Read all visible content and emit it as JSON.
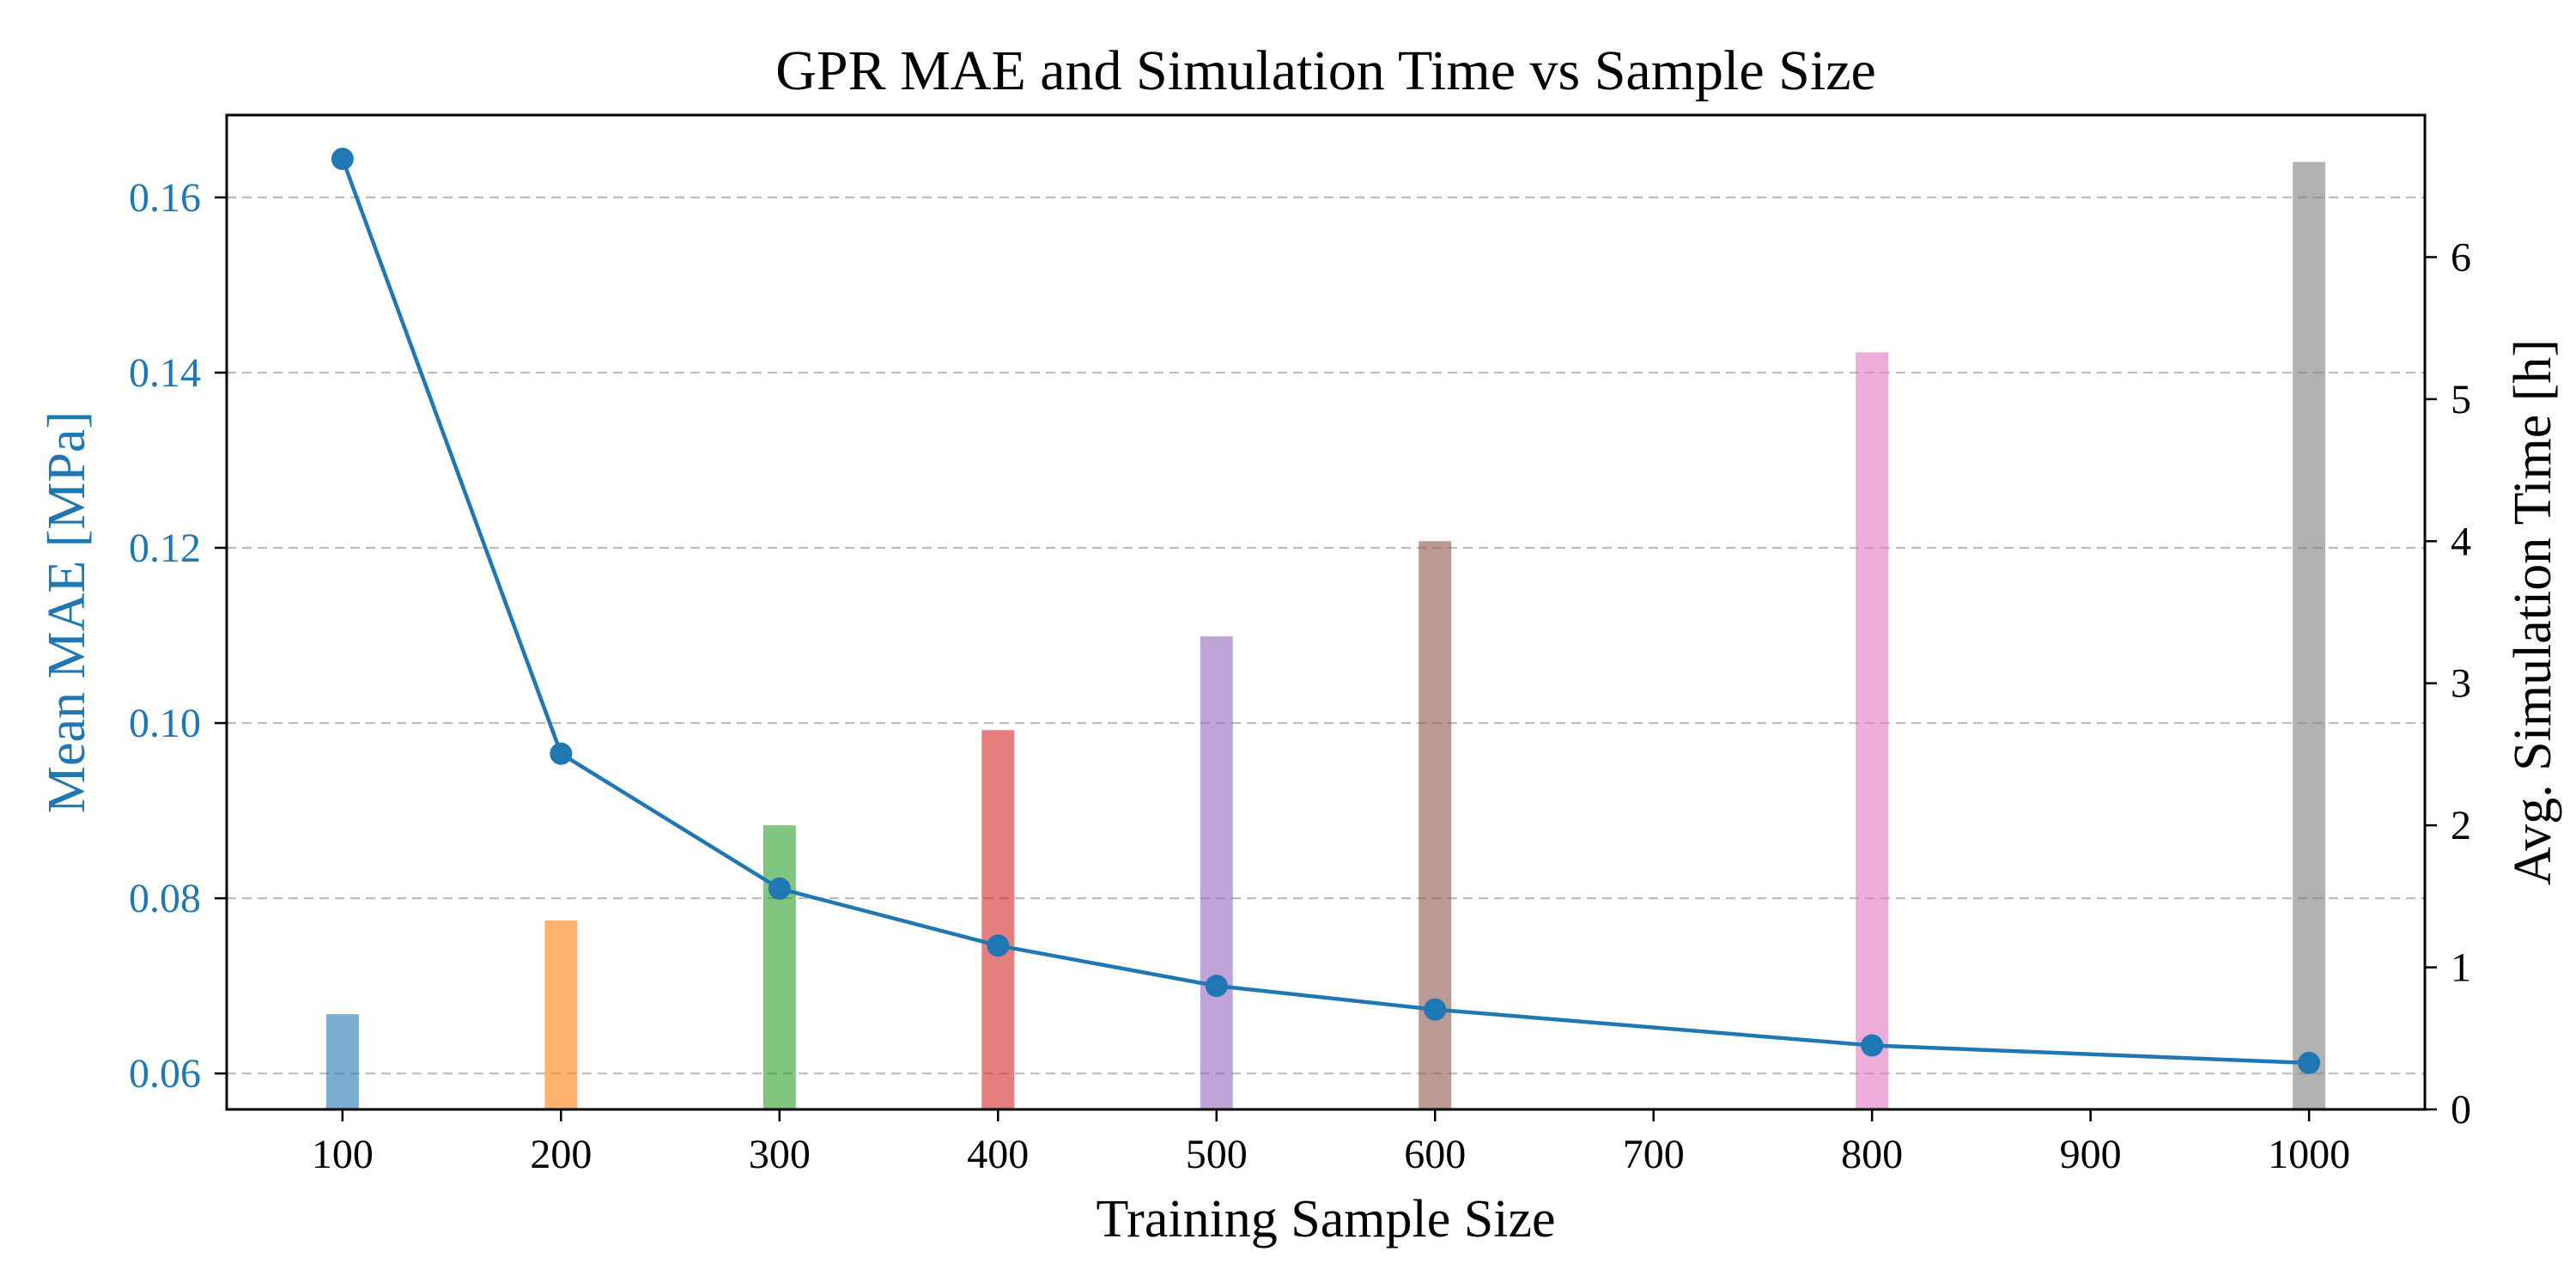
{
  "chart_data": {
    "type": "bar+line",
    "title": "GPR MAE and Simulation Time vs Sample Size",
    "xlabel": "Training Sample Size",
    "ylabel_left": "Mean MAE [MPa]",
    "ylabel_right": "Avg. Simulation Time [h]",
    "xlim": [
      47,
      1053
    ],
    "ylim_left": [
      0.0559,
      0.1694
    ],
    "ylim_right": [
      0,
      7.0
    ],
    "x_ticks": [
      100,
      200,
      300,
      400,
      500,
      600,
      700,
      800,
      900,
      1000
    ],
    "y_left_ticks": [
      0.06,
      0.08,
      0.1,
      0.12,
      0.14,
      0.16
    ],
    "y_left_tick_labels": [
      "0.06",
      "0.08",
      "0.10",
      "0.12",
      "0.14",
      "0.16"
    ],
    "y_right_ticks": [
      0,
      1,
      2,
      3,
      4,
      5,
      6
    ],
    "grid": "horizontal dashed (left axis)",
    "left_axis_color": "#1f77b4",
    "right_axis_color": "#000000",
    "series": [
      {
        "type": "line",
        "axis": "left",
        "color": "#1f77b4",
        "x": [
          100,
          200,
          300,
          400,
          500,
          600,
          800,
          1000
        ],
        "values": [
          0.1644,
          0.0965,
          0.0811,
          0.0746,
          0.07,
          0.0673,
          0.0632,
          0.0612
        ]
      },
      {
        "type": "bar",
        "axis": "right",
        "x": [
          100,
          200,
          300,
          400,
          500,
          600,
          800,
          1000
        ],
        "values": [
          0.67,
          1.33,
          2.0,
          2.67,
          3.33,
          4.0,
          5.33,
          6.67
        ],
        "colors": [
          "#1f77b4",
          "#ff7f0e",
          "#2ca02c",
          "#d62728",
          "#9467bd",
          "#8c564b",
          "#e377c2",
          "#7f7f7f"
        ],
        "opacity": 0.6
      }
    ]
  }
}
